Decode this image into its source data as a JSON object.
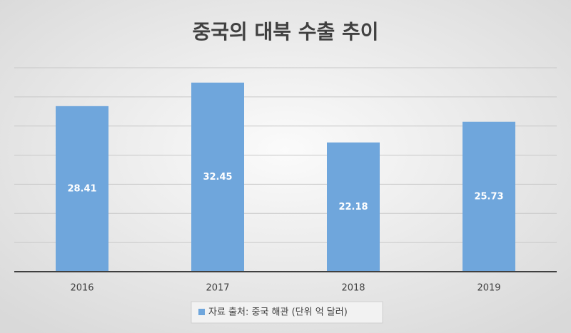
{
  "chart_data": {
    "type": "bar",
    "title": "중국의 대북 수출 추이",
    "categories": [
      "2016",
      "2017",
      "2018",
      "2019"
    ],
    "series": [
      {
        "name": "자료 출처: 중국 해관 (단위 억 달러)",
        "color": "#6fa6dc",
        "values": [
          28.41,
          32.45,
          22.18,
          25.73
        ]
      }
    ],
    "ylim": [
      0,
      35
    ],
    "yticks": [
      0,
      5,
      10,
      15,
      20,
      25,
      30,
      35
    ],
    "grid": true,
    "legend": "bottom"
  }
}
